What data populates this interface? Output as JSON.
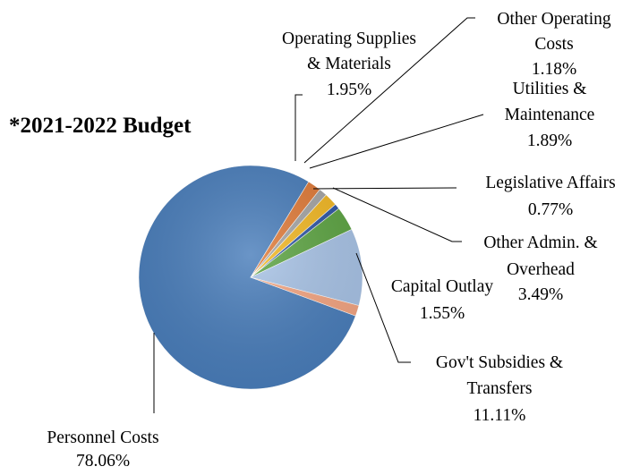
{
  "chart_data": {
    "type": "pie",
    "title": "*2021-2022 Budget",
    "slices": [
      {
        "name": "Personnel Costs",
        "value": 78.06,
        "pct_label": "78.06%",
        "color": "#4A7EBB"
      },
      {
        "name": "Operating Supplies & Materials",
        "value": 1.95,
        "pct_label": "1.95%",
        "color": "#E07B39"
      },
      {
        "name": "Other Operating Costs",
        "value": 1.18,
        "pct_label": "1.18%",
        "color": "#A5A5A5"
      },
      {
        "name": "Utilities & Maintenance",
        "value": 1.89,
        "pct_label": "1.89%",
        "color": "#F2B824"
      },
      {
        "name": "Legislative Affairs",
        "value": 0.77,
        "pct_label": "0.77%",
        "color": "#2E56A6"
      },
      {
        "name": "Other Admin. & Overhead",
        "value": 3.49,
        "pct_label": "3.49%",
        "color": "#5DA443"
      },
      {
        "name": "Gov't Subsidies & Transfers",
        "value": 11.11,
        "pct_label": "11.11%",
        "color": "#A8C3E6"
      },
      {
        "name": "Capital Outlay",
        "value": 1.55,
        "pct_label": "1.55%",
        "color": "#F4A582"
      }
    ]
  },
  "labels": {
    "personnel": [
      "Personnel Costs",
      "78.06%"
    ],
    "opsupplies": [
      "Operating Supplies",
      "& Materials",
      "1.95%"
    ],
    "otherop": [
      "Other Operating",
      "Costs",
      "1.18%"
    ],
    "utilities": [
      "Utilities &",
      "Maintenance",
      "1.89%"
    ],
    "legislative": [
      "Legislative Affairs",
      "0.77%"
    ],
    "otheradmin": [
      "Other Admin. &",
      "Overhead",
      "3.49%"
    ],
    "capital": [
      "Capital Outlay",
      "1.55%"
    ],
    "govt": [
      "Gov't Subsidies &",
      "Transfers",
      "11.11%"
    ]
  }
}
